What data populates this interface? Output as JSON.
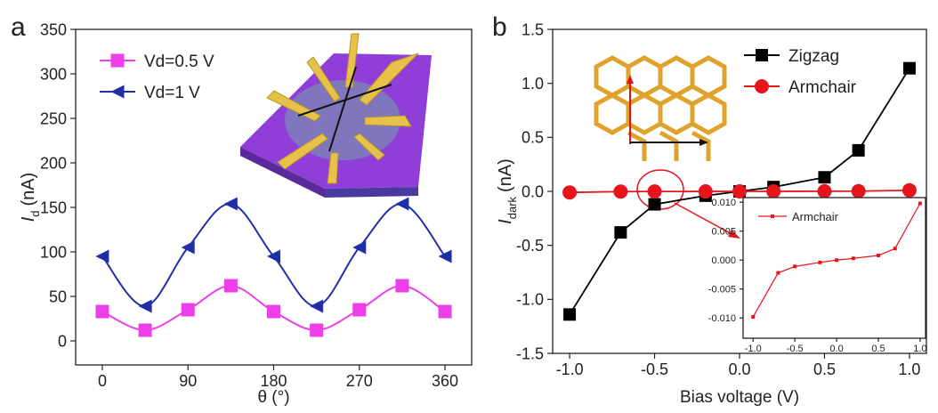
{
  "chart_data": [
    {
      "type": "line",
      "panel_label": "a",
      "smooth": true,
      "legend": "upper left",
      "x_label": "θ (°)",
      "y_label": {
        "symbol": "I",
        "subscript": "d",
        "unit": "(nA)"
      },
      "x": [
        0,
        45,
        90,
        135,
        180,
        225,
        270,
        315,
        360
      ],
      "xlim": [
        -28,
        388
      ],
      "xticks": [
        0,
        90,
        180,
        270,
        360
      ],
      "ylim": [
        -27,
        350
      ],
      "yticks": [
        0,
        50,
        100,
        150,
        200,
        250,
        300,
        350
      ],
      "series": [
        {
          "name": "Vd=0.5 V",
          "marker": "square",
          "color": "#ee3ee8",
          "values": [
            33,
            12,
            35,
            62,
            33,
            12,
            35,
            62,
            33
          ]
        },
        {
          "name": "Vd=1 V",
          "marker": "triangle-left",
          "color": "#1f2fa6",
          "values": [
            95,
            39,
            105,
            154,
            95,
            39,
            105,
            154,
            95
          ]
        }
      ]
    },
    {
      "type": "line",
      "panel_label": "b",
      "smooth": false,
      "legend": "upper right",
      "x_label": "Bias voltage (V)",
      "y_label": {
        "symbol": "I",
        "subscript": "dark",
        "unit": "(nA)"
      },
      "x": [
        -1.0,
        -0.7,
        -0.5,
        -0.2,
        0,
        0.2,
        0.5,
        0.7,
        1.0
      ],
      "xlim": [
        -1.1,
        1.1
      ],
      "xticks": [
        {
          "value": -1,
          "label": "-1.0"
        },
        -0.5,
        {
          "value": 0,
          "label": "0.0"
        },
        0.5,
        {
          "value": 1,
          "label": "1.0"
        }
      ],
      "ylim": [
        -1.5,
        1.5
      ],
      "yticks": [
        -1.5,
        {
          "value": -1,
          "label": "-1.0"
        },
        -0.5,
        {
          "value": 0,
          "label": "0.0"
        },
        0.5,
        {
          "value": 1,
          "label": "1.0"
        },
        1.5
      ],
      "series": [
        {
          "name": "Zigzag",
          "marker": "square",
          "color": "#000000",
          "values": [
            -1.14,
            -0.38,
            -0.12,
            -0.04,
            0,
            0.04,
            0.13,
            0.38,
            1.14
          ]
        },
        {
          "name": "Armchair",
          "marker": "circle",
          "color": "#e8141c",
          "values": [
            -0.0098,
            -0.0022,
            -0.0011,
            -0.0004,
            0,
            0.0003,
            0.0008,
            0.002,
            0.0098
          ]
        }
      ],
      "inset": {
        "xlim": [
          -1.12,
          1.065
        ],
        "xticks": [
          {
            "value": -1,
            "label": "-1.0"
          },
          -0.5,
          {
            "value": 0,
            "label": "0.0"
          },
          0.5,
          {
            "value": 1,
            "label": "1.0"
          }
        ],
        "ylim": [
          -0.0135,
          0.0108
        ],
        "yticks": [
          {
            "value": -0.01,
            "label": "-0.010"
          },
          {
            "value": -0.005,
            "label": "-0.005"
          },
          {
            "value": 0,
            "label": "0.000"
          },
          {
            "value": 0.005,
            "label": "0.005"
          },
          {
            "value": 0.01,
            "label": "0.010"
          }
        ]
      }
    }
  ]
}
